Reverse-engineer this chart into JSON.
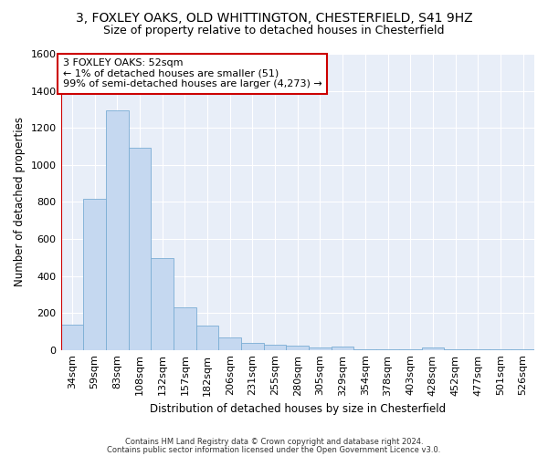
{
  "title1": "3, FOXLEY OAKS, OLD WHITTINGTON, CHESTERFIELD, S41 9HZ",
  "title2": "Size of property relative to detached houses in Chesterfield",
  "xlabel": "Distribution of detached houses by size in Chesterfield",
  "ylabel": "Number of detached properties",
  "categories": [
    "34sqm",
    "59sqm",
    "83sqm",
    "108sqm",
    "132sqm",
    "157sqm",
    "182sqm",
    "206sqm",
    "231sqm",
    "255sqm",
    "280sqm",
    "305sqm",
    "329sqm",
    "354sqm",
    "378sqm",
    "403sqm",
    "428sqm",
    "452sqm",
    "477sqm",
    "501sqm",
    "526sqm"
  ],
  "values": [
    135,
    815,
    1295,
    1090,
    495,
    230,
    130,
    68,
    40,
    30,
    25,
    12,
    18,
    5,
    5,
    2,
    15,
    1,
    1,
    1,
    1
  ],
  "bar_color": "#c5d8f0",
  "bar_edge_color": "#7aadd4",
  "annotation_text": "3 FOXLEY OAKS: 52sqm\n← 1% of detached houses are smaller (51)\n99% of semi-detached houses are larger (4,273) →",
  "annotation_box_color": "#ffffff",
  "annotation_box_edge": "#cc0000",
  "vline_color": "#cc0000",
  "footer1": "Contains HM Land Registry data © Crown copyright and database right 2024.",
  "footer2": "Contains public sector information licensed under the Open Government Licence v3.0.",
  "bg_color": "#e8eef8",
  "ylim": [
    0,
    1600
  ],
  "yticks": [
    0,
    200,
    400,
    600,
    800,
    1000,
    1200,
    1400,
    1600
  ],
  "title_fontsize": 10,
  "subtitle_fontsize": 9,
  "axis_fontsize": 8.5,
  "tick_fontsize": 8,
  "footer_fontsize": 6
}
